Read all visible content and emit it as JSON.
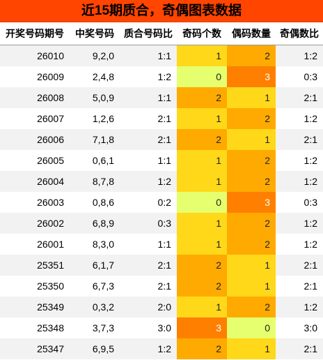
{
  "title": "近15期质合，奇偶图表数据",
  "columns": [
    "开奖号码期号",
    "中奖号码",
    "质合号码比",
    "奇码个数",
    "偶码数量",
    "奇偶数比"
  ],
  "rows": [
    {
      "issue": "26010",
      "numbers": "9,2,0",
      "prime_ratio": "1:1",
      "odd": 1,
      "even": 2,
      "odd_even_ratio": "1:2"
    },
    {
      "issue": "26009",
      "numbers": "2,4,8",
      "prime_ratio": "1:2",
      "odd": 0,
      "even": 3,
      "odd_even_ratio": "0:3"
    },
    {
      "issue": "26008",
      "numbers": "5,0,9",
      "prime_ratio": "1:1",
      "odd": 2,
      "even": 1,
      "odd_even_ratio": "2:1"
    },
    {
      "issue": "26007",
      "numbers": "1,2,6",
      "prime_ratio": "2:1",
      "odd": 1,
      "even": 2,
      "odd_even_ratio": "1:2"
    },
    {
      "issue": "26006",
      "numbers": "7,1,8",
      "prime_ratio": "2:1",
      "odd": 2,
      "even": 1,
      "odd_even_ratio": "2:1"
    },
    {
      "issue": "26005",
      "numbers": "0,6,1",
      "prime_ratio": "1:1",
      "odd": 1,
      "even": 2,
      "odd_even_ratio": "1:2"
    },
    {
      "issue": "26004",
      "numbers": "8,7,8",
      "prime_ratio": "1:2",
      "odd": 1,
      "even": 2,
      "odd_even_ratio": "1:2"
    },
    {
      "issue": "26003",
      "numbers": "0,8,6",
      "prime_ratio": "0:2",
      "odd": 0,
      "even": 3,
      "odd_even_ratio": "0:3"
    },
    {
      "issue": "26002",
      "numbers": "6,8,9",
      "prime_ratio": "0:3",
      "odd": 1,
      "even": 2,
      "odd_even_ratio": "1:2"
    },
    {
      "issue": "26001",
      "numbers": "8,3,0",
      "prime_ratio": "1:1",
      "odd": 1,
      "even": 2,
      "odd_even_ratio": "1:2"
    },
    {
      "issue": "25351",
      "numbers": "6,1,7",
      "prime_ratio": "2:1",
      "odd": 2,
      "even": 1,
      "odd_even_ratio": "2:1"
    },
    {
      "issue": "25350",
      "numbers": "6,7,3",
      "prime_ratio": "2:1",
      "odd": 2,
      "even": 1,
      "odd_even_ratio": "2:1"
    },
    {
      "issue": "25349",
      "numbers": "0,3,2",
      "prime_ratio": "2:0",
      "odd": 1,
      "even": 2,
      "odd_even_ratio": "1:2"
    },
    {
      "issue": "25348",
      "numbers": "3,7,3",
      "prime_ratio": "3:0",
      "odd": 3,
      "even": 0,
      "odd_even_ratio": "3:0"
    },
    {
      "issue": "25347",
      "numbers": "6,9,5",
      "prime_ratio": "1:2",
      "odd": 2,
      "even": 1,
      "odd_even_ratio": "2:1"
    }
  ],
  "colors": {
    "title_bg": "#ff4500",
    "level_0": "#e6ff6e",
    "level_1": "#ffd81a",
    "level_2": "#ffaa00",
    "level_3": "#ff7f00"
  }
}
